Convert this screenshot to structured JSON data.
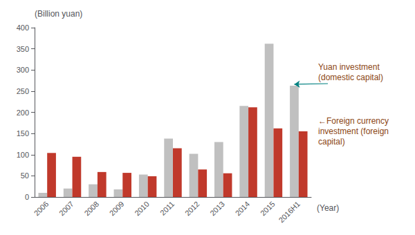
{
  "chart_data": {
    "type": "bar",
    "categories": [
      "2006",
      "2007",
      "2008",
      "2009",
      "2010",
      "2011",
      "2012",
      "2013",
      "2014",
      "2015",
      "2016H1"
    ],
    "series": [
      {
        "color": "#c0c0c0",
        "values": [
          10,
          20,
          30,
          18,
          53,
          138,
          102,
          130,
          215,
          362,
          263
        ]
      },
      {
        "color": "#c0392b",
        "values": [
          104,
          95,
          59,
          57,
          49,
          115,
          65,
          56,
          212,
          162,
          155
        ]
      }
    ],
    "ylabel": "(Billion yuan)",
    "xlabel": "(Year)",
    "ylim": [
      0,
      400
    ],
    "yticks": [
      0,
      50,
      100,
      150,
      200,
      250,
      300,
      350,
      400
    ],
    "grid": false,
    "annotations": [
      {
        "text": "Yuan investment\n(domestic capital)",
        "color": "#8B4513",
        "arrow_color": "#008080"
      },
      {
        "text": "←Foreign currency\ninvestment (foreign\ncapital)",
        "color": "#8B4513"
      }
    ]
  }
}
